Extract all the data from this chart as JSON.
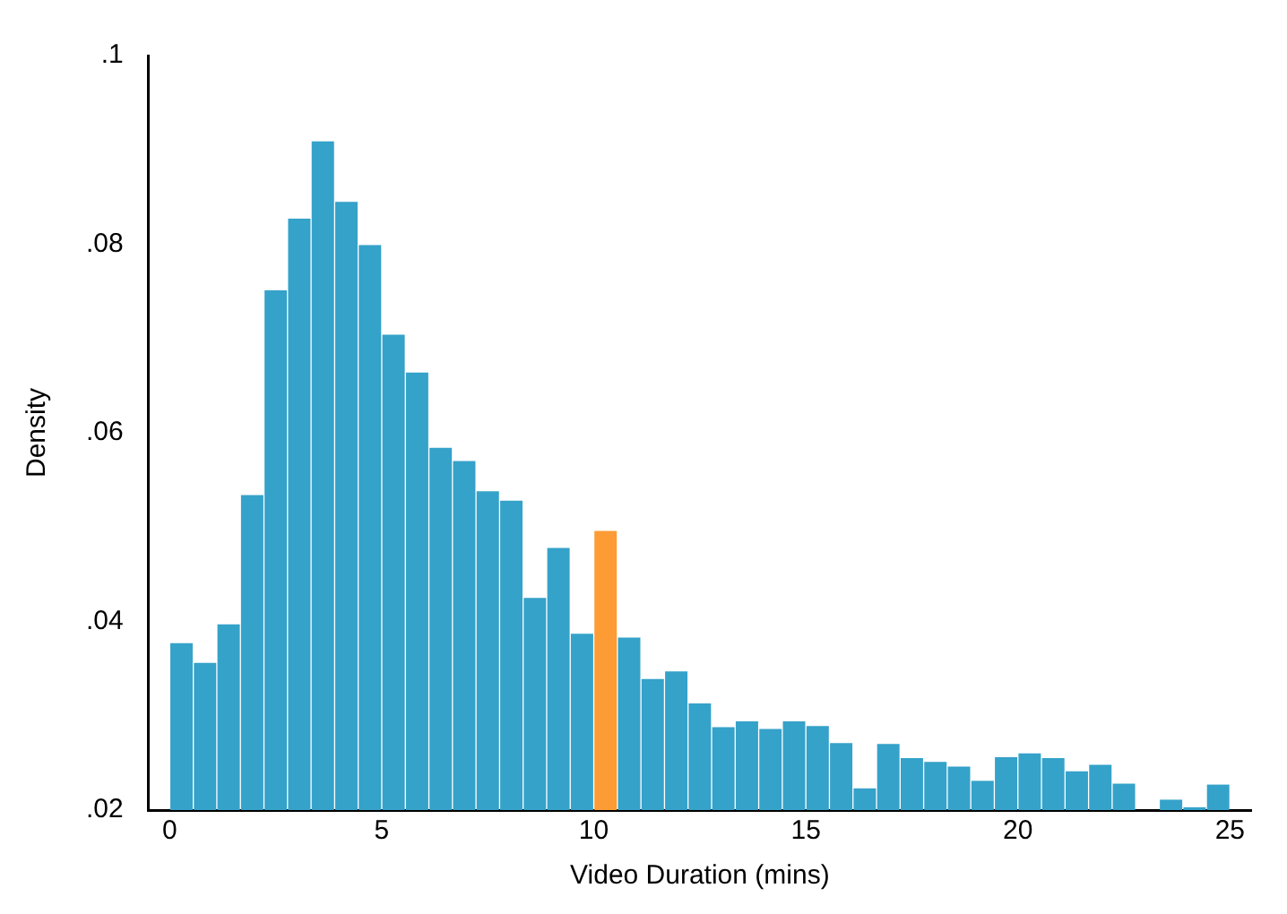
{
  "chart_data": {
    "type": "histogram",
    "xlabel": "Video Duration (mins)",
    "ylabel": "Density",
    "bins": [
      0,
      0.556,
      1.111,
      1.667,
      2.222,
      2.778,
      3.333,
      3.889,
      4.444,
      5,
      5.556,
      6.111,
      6.667,
      7.222,
      7.778,
      8.333,
      8.889,
      9.444,
      10,
      10.556,
      11.111,
      11.667,
      12.222,
      12.778,
      13.333,
      13.889,
      14.444,
      15,
      15.556,
      16.111,
      16.667,
      17.222,
      17.778,
      18.333,
      18.889,
      19.444,
      20,
      20.556,
      21.111,
      21.667,
      22.222,
      22.778,
      23.333,
      23.889,
      24.444,
      25
    ],
    "values": [
      0.0377,
      0.0356,
      0.0397,
      0.0534,
      0.0751,
      0.0827,
      0.0909,
      0.0845,
      0.0799,
      0.0704,
      0.0664,
      0.0584,
      0.057,
      0.0538,
      0.0528,
      0.0425,
      0.0478,
      0.0387,
      0.0496,
      0.0383,
      0.0339,
      0.0347,
      0.0313,
      0.0288,
      0.0294,
      0.0286,
      0.0294,
      0.0289,
      0.0271,
      0.0223,
      0.027,
      0.0255,
      0.0251,
      0.0246,
      0.0231,
      0.0256,
      0.026,
      0.0255,
      0.0241,
      0.0248,
      0.0228,
      0.02,
      0.0211,
      0.0203,
      0.0227
    ],
    "colors": [
      "#35a2c9",
      "#35a2c9",
      "#35a2c9",
      "#35a2c9",
      "#35a2c9",
      "#35a2c9",
      "#35a2c9",
      "#35a2c9",
      "#35a2c9",
      "#35a2c9",
      "#35a2c9",
      "#35a2c9",
      "#35a2c9",
      "#35a2c9",
      "#35a2c9",
      "#35a2c9",
      "#35a2c9",
      "#35a2c9",
      "#fd9b35",
      "#35a2c9",
      "#35a2c9",
      "#35a2c9",
      "#35a2c9",
      "#35a2c9",
      "#35a2c9",
      "#35a2c9",
      "#35a2c9",
      "#35a2c9",
      "#35a2c9",
      "#35a2c9",
      "#35a2c9",
      "#35a2c9",
      "#35a2c9",
      "#35a2c9",
      "#35a2c9",
      "#35a2c9",
      "#35a2c9",
      "#35a2c9",
      "#35a2c9",
      "#35a2c9",
      "#35a2c9",
      "#35a2c9",
      "#35a2c9",
      "#35a2c9",
      "#35a2c9"
    ],
    "xlim": [
      -0.5,
      25.5
    ],
    "xticks": [
      0,
      5,
      10,
      15,
      20,
      25
    ],
    "ylim": [
      0.02,
      0.1
    ],
    "yticks": [
      {
        "value": 0.02,
        "label": ".02"
      },
      {
        "value": 0.04,
        "label": ".04"
      },
      {
        "value": 0.06,
        "label": ".06"
      },
      {
        "value": 0.08,
        "label": ".08"
      },
      {
        "value": 0.1,
        "label": ".1"
      }
    ],
    "grid": false,
    "legend": false
  }
}
